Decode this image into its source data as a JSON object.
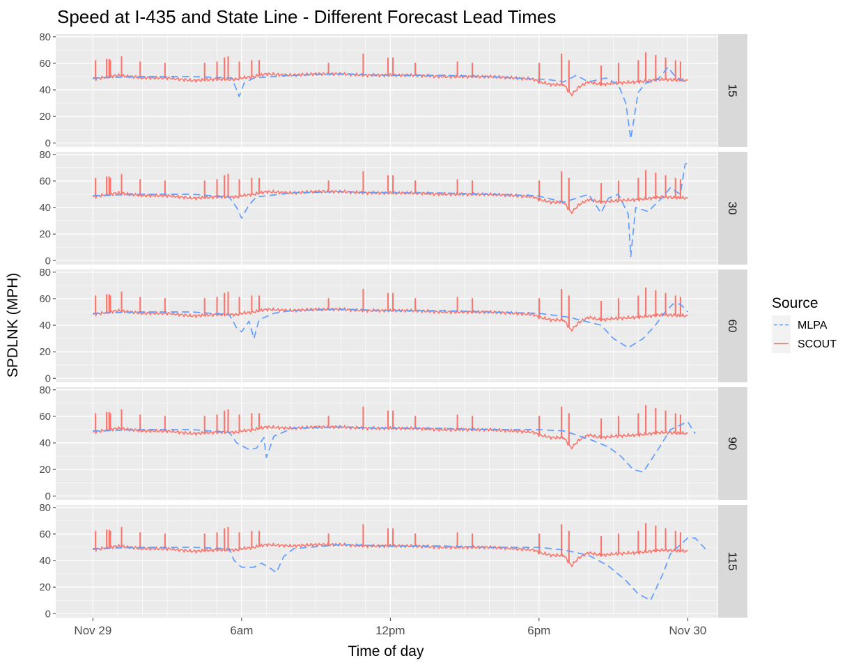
{
  "colors": {
    "panel_bg": "#EBEBEB",
    "strip_bg": "#D9D9D9",
    "grid_major": "#FFFFFF",
    "mlpa": "#619CFF",
    "scout": "#F8766D",
    "text_dark": "#1A1A1A",
    "text_tick": "#4D4D4D"
  },
  "chart_data": {
    "type": "line",
    "title": "Speed at I-435 and State Line - Different Forecast  Lead Times",
    "xlabel": "Time of day",
    "ylabel": "SPDLNK (MPH)",
    "x_unit": "hours after Nov 29 00:00",
    "xlim": [
      -1.5,
      25.2
    ],
    "ylim": [
      -3,
      82
    ],
    "x_ticks": [
      {
        "value": 0,
        "label": "Nov 29"
      },
      {
        "value": 6,
        "label": "6am"
      },
      {
        "value": 12,
        "label": "12pm"
      },
      {
        "value": 18,
        "label": "6pm"
      },
      {
        "value": 24,
        "label": "Nov 30"
      }
    ],
    "y_ticks": [
      0,
      20,
      40,
      60,
      80
    ],
    "grid": true,
    "legend": {
      "title": "Source",
      "position": "right",
      "entries": [
        {
          "name": "MLPA",
          "linetype": "dashed",
          "color": "#619CFF"
        },
        {
          "name": "SCOUT",
          "linetype": "solid",
          "color": "#F8766D"
        }
      ]
    },
    "scout_baseline": [
      [
        0,
        48
      ],
      [
        1,
        51
      ],
      [
        2,
        49
      ],
      [
        3,
        49
      ],
      [
        4,
        47
      ],
      [
        5,
        48
      ],
      [
        5.8,
        48
      ],
      [
        6,
        49
      ],
      [
        6.5,
        50
      ],
      [
        7,
        52
      ],
      [
        8,
        51
      ],
      [
        9,
        52
      ],
      [
        10,
        52
      ],
      [
        11,
        51
      ],
      [
        12,
        51
      ],
      [
        13,
        51
      ],
      [
        14,
        50
      ],
      [
        15,
        50
      ],
      [
        16,
        50
      ],
      [
        17,
        49
      ],
      [
        17.8,
        48
      ],
      [
        18,
        46
      ],
      [
        18.5,
        44
      ],
      [
        19,
        44
      ],
      [
        19.3,
        36
      ],
      [
        19.6,
        42
      ],
      [
        20,
        46
      ],
      [
        20.5,
        44
      ],
      [
        21,
        45
      ],
      [
        22,
        46
      ],
      [
        23,
        48
      ],
      [
        24,
        47
      ]
    ],
    "scout_spikes": [
      {
        "x": 0.1,
        "y": 62
      },
      {
        "x": 0.55,
        "y": 63
      },
      {
        "x": 0.65,
        "y": 63
      },
      {
        "x": 0.7,
        "y": 62
      },
      {
        "x": 1.15,
        "y": 65
      },
      {
        "x": 1.9,
        "y": 61
      },
      {
        "x": 2.9,
        "y": 60
      },
      {
        "x": 4.5,
        "y": 60
      },
      {
        "x": 5.0,
        "y": 61
      },
      {
        "x": 5.3,
        "y": 64
      },
      {
        "x": 5.45,
        "y": 65
      },
      {
        "x": 5.9,
        "y": 61
      },
      {
        "x": 6.4,
        "y": 62
      },
      {
        "x": 6.7,
        "y": 62
      },
      {
        "x": 9.5,
        "y": 60
      },
      {
        "x": 10.9,
        "y": 67
      },
      {
        "x": 11.9,
        "y": 64
      },
      {
        "x": 12.1,
        "y": 64
      },
      {
        "x": 13.0,
        "y": 60
      },
      {
        "x": 14.7,
        "y": 61
      },
      {
        "x": 15.3,
        "y": 60
      },
      {
        "x": 18.0,
        "y": 60
      },
      {
        "x": 18.9,
        "y": 67
      },
      {
        "x": 19.2,
        "y": 62
      },
      {
        "x": 20.5,
        "y": 58
      },
      {
        "x": 21.2,
        "y": 60
      },
      {
        "x": 22.0,
        "y": 62
      },
      {
        "x": 22.3,
        "y": 68
      },
      {
        "x": 22.7,
        "y": 66
      },
      {
        "x": 23.1,
        "y": 64
      },
      {
        "x": 23.5,
        "y": 62
      },
      {
        "x": 23.7,
        "y": 61
      }
    ],
    "panels": [
      {
        "strip": "15",
        "mlpa": [
          [
            0,
            49
          ],
          [
            2,
            50
          ],
          [
            4,
            50
          ],
          [
            5.6,
            49
          ],
          [
            5.8,
            40
          ],
          [
            5.9,
            35
          ],
          [
            6.1,
            45
          ],
          [
            6.5,
            49
          ],
          [
            8,
            51
          ],
          [
            10,
            52
          ],
          [
            12,
            51
          ],
          [
            14,
            51
          ],
          [
            16,
            50
          ],
          [
            17.9,
            48
          ],
          [
            18.3,
            48
          ],
          [
            19,
            46
          ],
          [
            19.5,
            51
          ],
          [
            20.0,
            46
          ],
          [
            20.7,
            49
          ],
          [
            21.2,
            44
          ],
          [
            21.5,
            30
          ],
          [
            21.7,
            3
          ],
          [
            22.0,
            38
          ],
          [
            22.3,
            45
          ],
          [
            22.8,
            48
          ],
          [
            23.2,
            57
          ],
          [
            23.5,
            50
          ],
          [
            24,
            45
          ]
        ]
      },
      {
        "strip": "30",
        "mlpa": [
          [
            0,
            49
          ],
          [
            2,
            50
          ],
          [
            4,
            50
          ],
          [
            5.5,
            48
          ],
          [
            5.8,
            40
          ],
          [
            6.0,
            32
          ],
          [
            6.3,
            42
          ],
          [
            6.6,
            48
          ],
          [
            8,
            51
          ],
          [
            10,
            52
          ],
          [
            12,
            51
          ],
          [
            14,
            51
          ],
          [
            16,
            50
          ],
          [
            17.9,
            49
          ],
          [
            19,
            44
          ],
          [
            20.0,
            50
          ],
          [
            20.5,
            36
          ],
          [
            20.8,
            47
          ],
          [
            21.2,
            50
          ],
          [
            21.6,
            35
          ],
          [
            21.7,
            3
          ],
          [
            21.9,
            40
          ],
          [
            22.4,
            37
          ],
          [
            23.0,
            48
          ],
          [
            23.3,
            55
          ],
          [
            23.7,
            50
          ],
          [
            23.9,
            73
          ],
          [
            24.1,
            73
          ]
        ]
      },
      {
        "strip": "60",
        "mlpa": [
          [
            0,
            49
          ],
          [
            2,
            50
          ],
          [
            4,
            50
          ],
          [
            5.5,
            48
          ],
          [
            5.8,
            38
          ],
          [
            6.0,
            35
          ],
          [
            6.3,
            43
          ],
          [
            6.5,
            30
          ],
          [
            6.7,
            44
          ],
          [
            7.3,
            49
          ],
          [
            8,
            51
          ],
          [
            10,
            52
          ],
          [
            12,
            51
          ],
          [
            14,
            51
          ],
          [
            16,
            50
          ],
          [
            18,
            49
          ],
          [
            19.2,
            46
          ],
          [
            20.5,
            40
          ],
          [
            21.0,
            30
          ],
          [
            21.6,
            23
          ],
          [
            22.2,
            30
          ],
          [
            22.7,
            40
          ],
          [
            23.0,
            48
          ],
          [
            23.4,
            56
          ],
          [
            23.7,
            56
          ],
          [
            24,
            50
          ]
        ]
      },
      {
        "strip": "90",
        "mlpa": [
          [
            0,
            49
          ],
          [
            2,
            50
          ],
          [
            4,
            50
          ],
          [
            5.5,
            48
          ],
          [
            5.8,
            40
          ],
          [
            6.0,
            38
          ],
          [
            6.3,
            35
          ],
          [
            6.6,
            36
          ],
          [
            6.9,
            44
          ],
          [
            7.0,
            29
          ],
          [
            7.3,
            45
          ],
          [
            7.8,
            49
          ],
          [
            8,
            51
          ],
          [
            10,
            52
          ],
          [
            12,
            51
          ],
          [
            14,
            51
          ],
          [
            16,
            50
          ],
          [
            18,
            50
          ],
          [
            19.0,
            49
          ],
          [
            20.0,
            43
          ],
          [
            20.8,
            37
          ],
          [
            21.3,
            30
          ],
          [
            21.8,
            20
          ],
          [
            22.2,
            18
          ],
          [
            22.8,
            35
          ],
          [
            23.3,
            50
          ],
          [
            24.0,
            56
          ],
          [
            24.3,
            47
          ]
        ]
      },
      {
        "strip": "115",
        "mlpa": [
          [
            0,
            49
          ],
          [
            2,
            50
          ],
          [
            4,
            50
          ],
          [
            5.5,
            49
          ],
          [
            5.7,
            40
          ],
          [
            6.0,
            35
          ],
          [
            6.5,
            35
          ],
          [
            6.8,
            38
          ],
          [
            7.1,
            35
          ],
          [
            7.4,
            31
          ],
          [
            7.7,
            43
          ],
          [
            8.1,
            49
          ],
          [
            10,
            52
          ],
          [
            12,
            51
          ],
          [
            14,
            51
          ],
          [
            16,
            50
          ],
          [
            18,
            50
          ],
          [
            19.0,
            48
          ],
          [
            20.0,
            44
          ],
          [
            20.8,
            36
          ],
          [
            21.5,
            25
          ],
          [
            22.0,
            15
          ],
          [
            22.5,
            10
          ],
          [
            23.0,
            30
          ],
          [
            23.3,
            45
          ],
          [
            24.0,
            57
          ],
          [
            24.3,
            57
          ],
          [
            24.8,
            47
          ]
        ]
      }
    ]
  }
}
